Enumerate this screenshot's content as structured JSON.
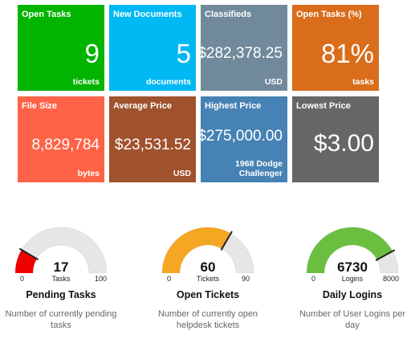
{
  "tiles": [
    {
      "title": "Open Tasks",
      "value": "9",
      "unit": "tickets",
      "color": "#00b400"
    },
    {
      "title": "New Documents",
      "value": "5",
      "unit": "documents",
      "color": "#00b8f4"
    },
    {
      "title": "Classifieds",
      "value": "$282,378.25",
      "unit": "USD",
      "color": "#708a9b"
    },
    {
      "title": "Open Tasks (%)",
      "value": "81%",
      "unit": "tasks",
      "color": "#d96d1b"
    },
    {
      "title": "File Size",
      "value": "8,829,784",
      "unit": "bytes",
      "color": "#ff6347"
    },
    {
      "title": "Average Price",
      "value": "$23,531.52",
      "unit": "USD",
      "color": "#a0522d"
    },
    {
      "title": "Highest Price",
      "value": "$275,000.00",
      "unit": "1968 Dodge Challenger",
      "color": "#4682b4"
    },
    {
      "title": "Lowest Price",
      "value": "$3.00",
      "unit": "",
      "color": "#666666"
    }
  ],
  "gauges": [
    {
      "title": "Pending Tasks",
      "value": "17",
      "unit": "Tasks",
      "min": "0",
      "max": "100",
      "fraction": 0.17,
      "color": "#ee0000",
      "description": "Number of currently pending tasks"
    },
    {
      "title": "Open Tickets",
      "value": "60",
      "unit": "Tickets",
      "min": "0",
      "max": "90",
      "fraction": 0.6667,
      "color": "#f5a623",
      "description": "Number of currently open helpdesk tickets"
    },
    {
      "title": "Daily Logins",
      "value": "6730",
      "unit": "Logins",
      "min": "0",
      "max": "8000",
      "fraction": 0.84125,
      "color": "#6abf40",
      "description": "Number of User Logins per day"
    }
  ]
}
